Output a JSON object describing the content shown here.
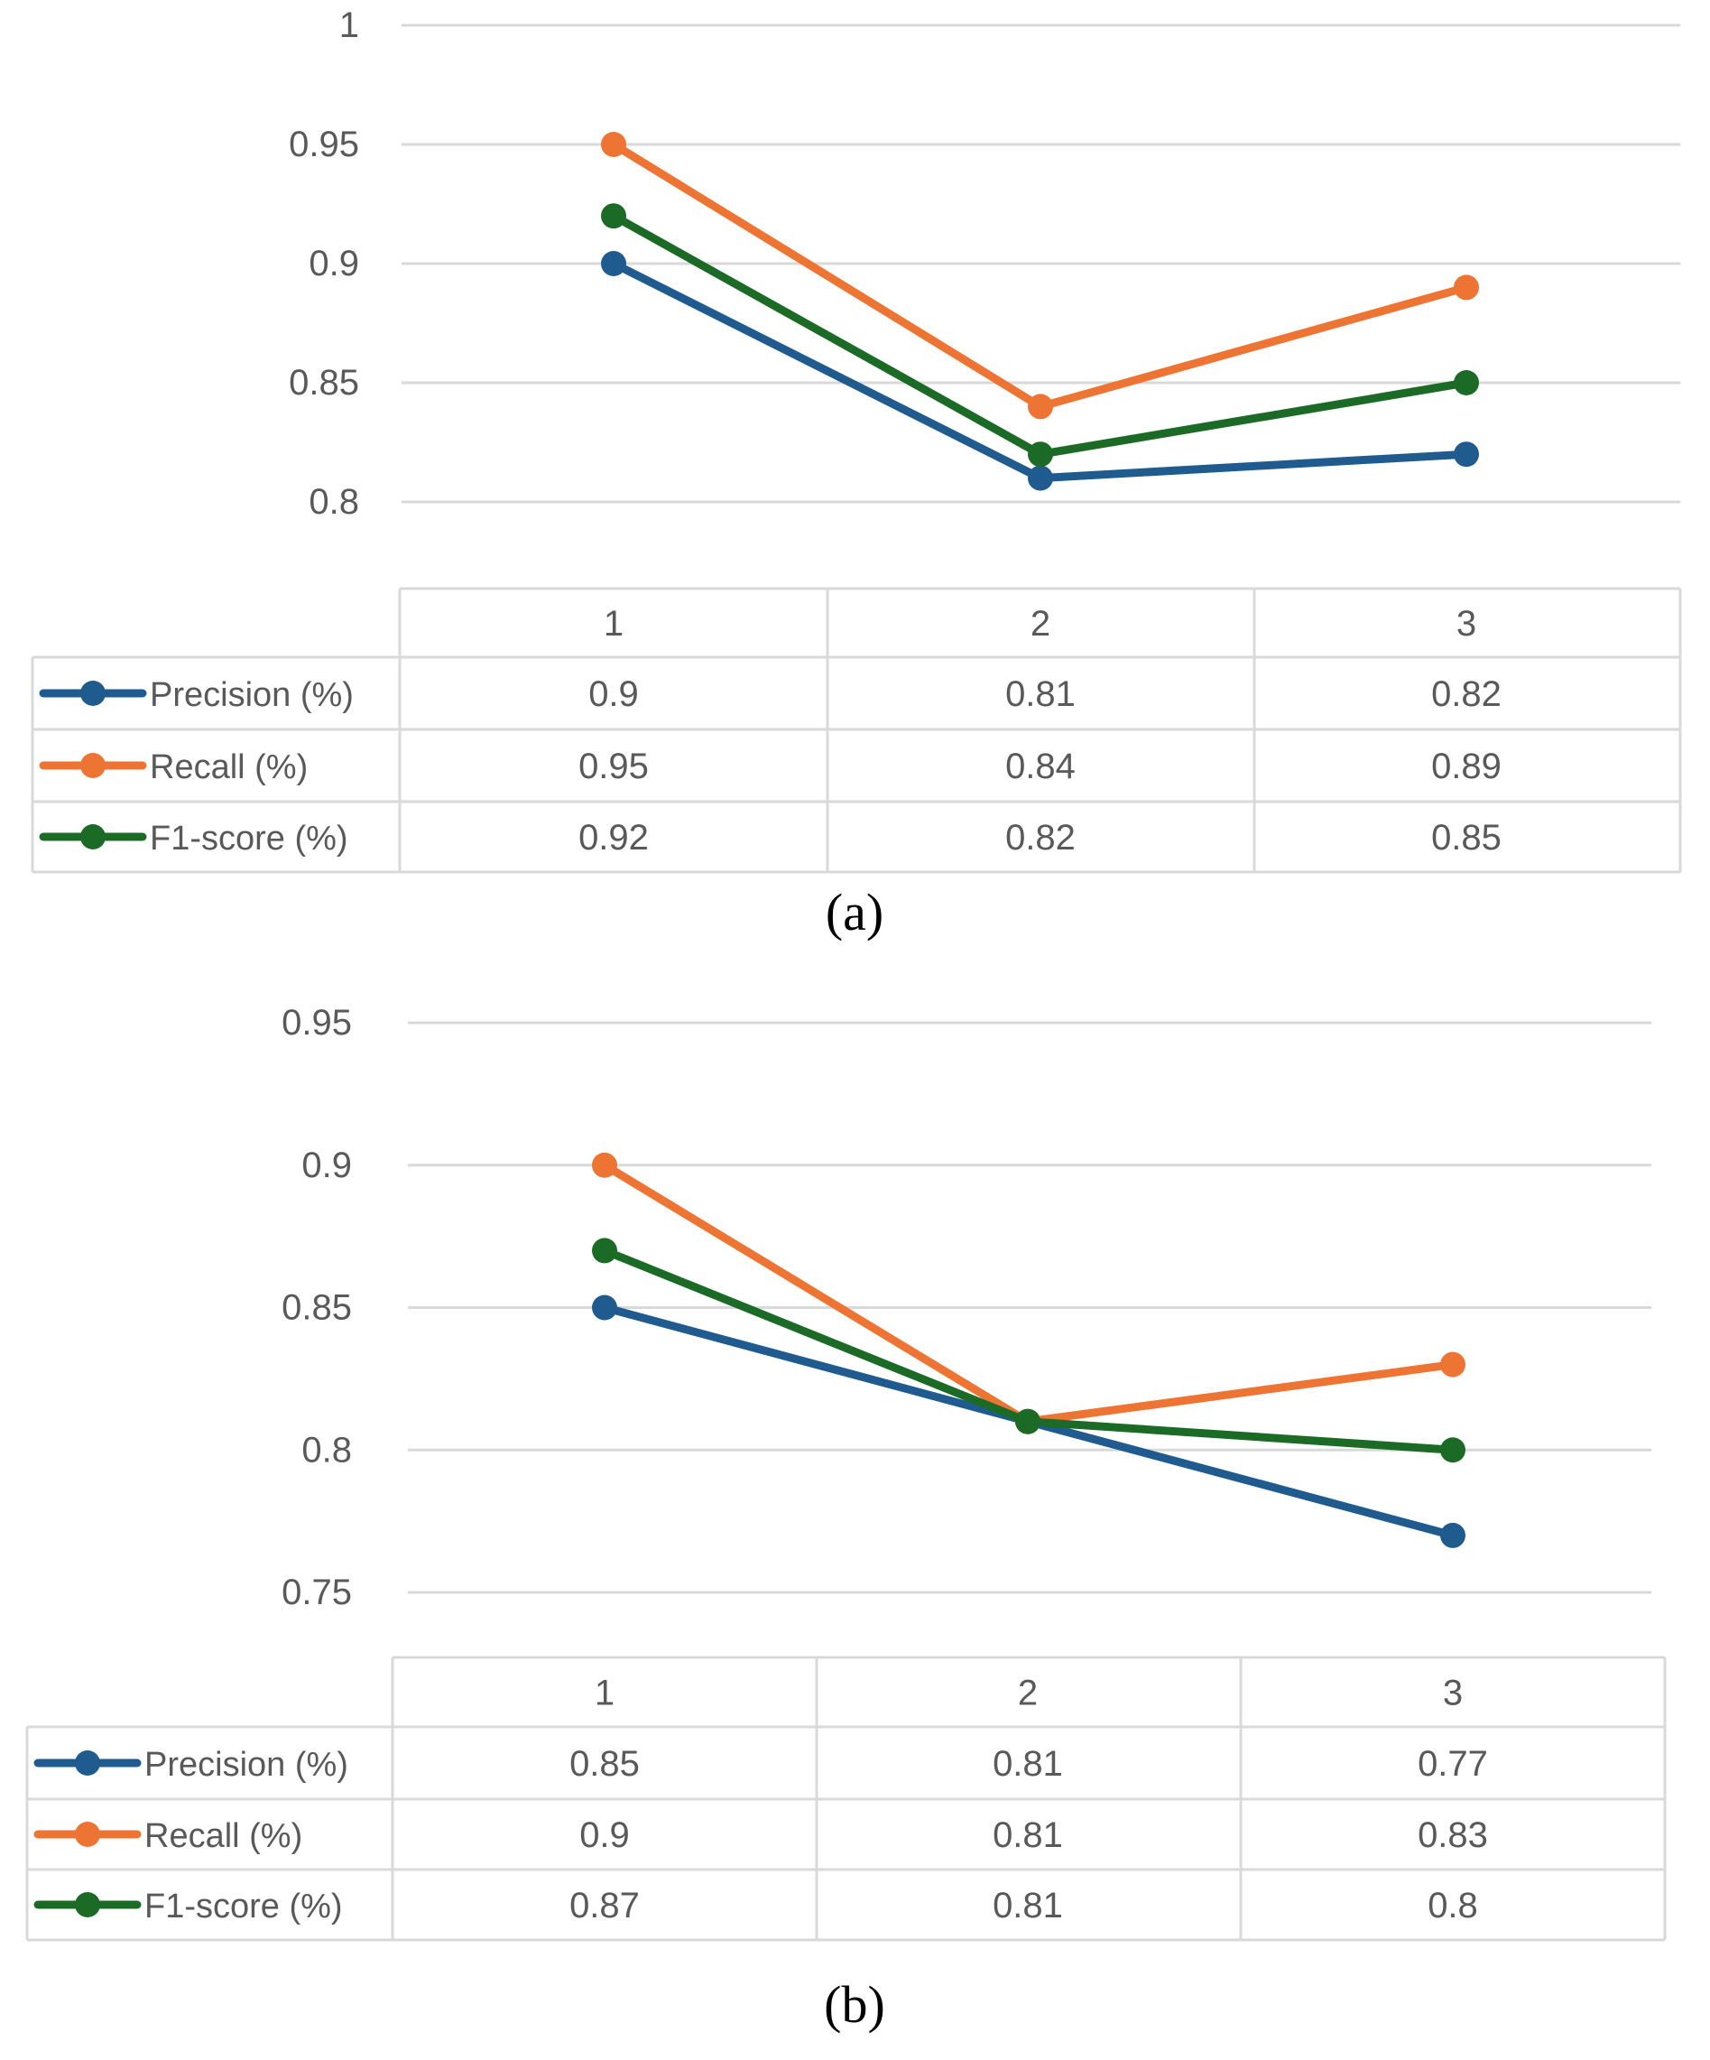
{
  "colors": {
    "Precision (%)": "#1f5b8f",
    "Recall (%)": "#ed7433",
    "F1-score (%)": "#1b6b26"
  },
  "chart_data": [
    {
      "type": "line",
      "caption": "(a)",
      "categories": [
        "1",
        "2",
        "3"
      ],
      "ylim": [
        0.8,
        1
      ],
      "yticks": [
        "1",
        "0.95",
        "0.9",
        "0.85",
        "0.8"
      ],
      "ytick_values": [
        1,
        0.95,
        0.9,
        0.85,
        0.8
      ],
      "grid": true,
      "legend": "data-table",
      "series": [
        {
          "name": "Precision (%)",
          "values": [
            0.9,
            0.81,
            0.82
          ],
          "labels": [
            "0.9",
            "0.81",
            "0.82"
          ]
        },
        {
          "name": "Recall (%)",
          "values": [
            0.95,
            0.84,
            0.89
          ],
          "labels": [
            "0.95",
            "0.84",
            "0.89"
          ]
        },
        {
          "name": "F1-score (%)",
          "values": [
            0.92,
            0.82,
            0.85
          ],
          "labels": [
            "0.92",
            "0.82",
            "0.85"
          ]
        }
      ]
    },
    {
      "type": "line",
      "caption": "(b)",
      "categories": [
        "1",
        "2",
        "3"
      ],
      "ylim": [
        0.75,
        0.95
      ],
      "yticks": [
        "0.95",
        "0.9",
        "0.85",
        "0.8",
        "0.75"
      ],
      "ytick_values": [
        0.95,
        0.9,
        0.85,
        0.8,
        0.75
      ],
      "grid": true,
      "legend": "data-table",
      "series": [
        {
          "name": "Precision (%)",
          "values": [
            0.85,
            0.81,
            0.77
          ],
          "labels": [
            "0.85",
            "0.81",
            "0.77"
          ]
        },
        {
          "name": "Recall (%)",
          "values": [
            0.9,
            0.81,
            0.83
          ],
          "labels": [
            "0.9",
            "0.81",
            "0.83"
          ]
        },
        {
          "name": "F1-score (%)",
          "values": [
            0.87,
            0.81,
            0.8
          ],
          "labels": [
            "0.87",
            "0.81",
            "0.8"
          ]
        }
      ]
    }
  ]
}
